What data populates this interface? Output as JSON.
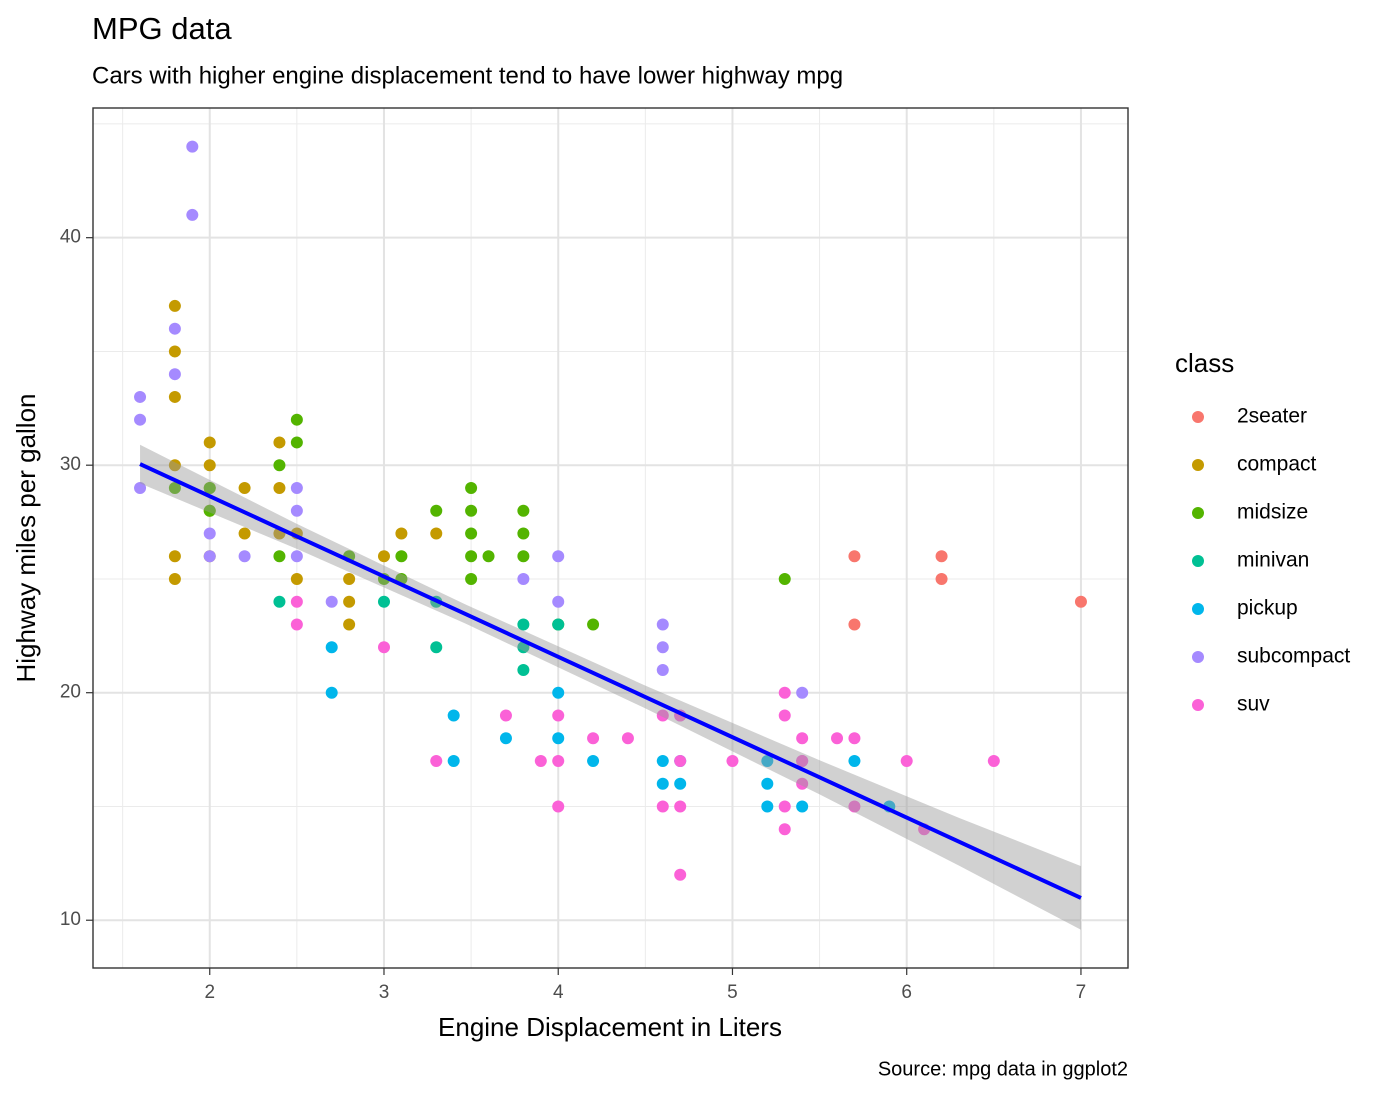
{
  "chart_data": {
    "type": "scatter",
    "title": "MPG data",
    "subtitle": "Cars with higher engine displacement tend to have lower highway mpg",
    "x_label": "Engine Displacement in Liters",
    "y_label": "Highway miles per gallon",
    "caption": "Source: mpg data in ggplot2",
    "legend_title": "class",
    "legend_position": "right",
    "grid": true,
    "xlim": [
      1.33,
      7.27
    ],
    "ylim": [
      7.9,
      45.7
    ],
    "xticks": [
      2,
      3,
      4,
      5,
      6,
      7
    ],
    "yticks": [
      10,
      20,
      30,
      40
    ],
    "minor_xticks": [
      1.5,
      2.5,
      3.5,
      4.5,
      5.5,
      6.5
    ],
    "minor_yticks": [
      15,
      25,
      35,
      45
    ],
    "series": [
      {
        "name": "2seater",
        "color": "#F8766D",
        "x": [
          5.7,
          5.7,
          6.2,
          6.2,
          7
        ],
        "values": [
          26,
          23,
          26,
          25,
          24
        ]
      },
      {
        "name": "compact",
        "color": "#C49A00",
        "x": [
          1.8,
          1.8,
          1.8,
          1.8,
          1.8,
          1.8,
          2,
          2,
          2,
          2,
          2,
          2.2,
          2.2,
          2.4,
          2.4,
          2.4,
          2.5,
          2.5,
          2.8,
          2.8,
          2.8,
          3,
          3.1,
          3.3
        ],
        "values": [
          37,
          35,
          33,
          30,
          26,
          25,
          31,
          30,
          29,
          28,
          26,
          29,
          27,
          31,
          29,
          27,
          27,
          25,
          25,
          24,
          23,
          26,
          27,
          27
        ]
      },
      {
        "name": "midsize",
        "color": "#53B400",
        "x": [
          1.8,
          2,
          2,
          2.4,
          2.4,
          2.5,
          2.5,
          2.8,
          3,
          3.1,
          3.1,
          3.3,
          3.5,
          3.5,
          3.5,
          3.5,
          3.5,
          3.6,
          3.8,
          3.8,
          3.8,
          4,
          4.2,
          5.3
        ],
        "values": [
          29,
          29,
          28,
          30,
          26,
          32,
          31,
          26,
          25,
          26,
          25,
          28,
          29,
          28,
          27,
          26,
          25,
          26,
          28,
          27,
          26,
          23,
          23,
          25
        ]
      },
      {
        "name": "minivan",
        "color": "#00C094",
        "x": [
          2.4,
          3,
          3.3,
          3.3,
          3.8,
          3.8,
          3.8,
          4
        ],
        "values": [
          24,
          24,
          24,
          22,
          23,
          22,
          21,
          23
        ]
      },
      {
        "name": "pickup",
        "color": "#00B6EB",
        "x": [
          2.7,
          2.7,
          3.4,
          3.4,
          3.7,
          4,
          4,
          4.2,
          4.6,
          4.6,
          4.7,
          4.7,
          5.2,
          5.2,
          5.2,
          5.4,
          5.7,
          5.9
        ],
        "values": [
          22,
          20,
          19,
          17,
          18,
          20,
          18,
          17,
          17,
          16,
          17,
          16,
          17,
          16,
          15,
          15,
          17,
          15
        ]
      },
      {
        "name": "subcompact",
        "color": "#A58AFF",
        "x": [
          1.6,
          1.6,
          1.6,
          1.8,
          1.8,
          1.9,
          1.9,
          2,
          2,
          2.2,
          2.5,
          2.5,
          2.5,
          2.7,
          3.8,
          4,
          4,
          4.6,
          4.6,
          4.6,
          4.7,
          5.4,
          5.4
        ],
        "values": [
          33,
          32,
          29,
          36,
          34,
          44,
          41,
          27,
          26,
          26,
          29,
          28,
          26,
          24,
          25,
          26,
          24,
          23,
          22,
          21,
          19,
          20,
          17
        ]
      },
      {
        "name": "suv",
        "color": "#FB61D7",
        "x": [
          2.5,
          2.5,
          3,
          3.3,
          3.7,
          3.9,
          4,
          4,
          4,
          4.2,
          4.4,
          4.6,
          4.6,
          4.7,
          4.7,
          4.7,
          4.7,
          5,
          5.3,
          5.3,
          5.3,
          5.3,
          5.4,
          5.4,
          5.4,
          5.6,
          5.7,
          5.7,
          6,
          6.1,
          6.5
        ],
        "values": [
          24,
          23,
          22,
          17,
          19,
          17,
          19,
          17,
          15,
          18,
          18,
          19,
          15,
          19,
          17,
          15,
          12,
          17,
          20,
          19,
          15,
          14,
          18,
          17,
          16,
          18,
          18,
          15,
          17,
          14,
          17
        ]
      }
    ],
    "fit": {
      "color": "#0000FF",
      "band_color": "#999999",
      "x": [
        1.6,
        2.5,
        3.47,
        4.5,
        5.5,
        6.3,
        7
      ],
      "values": [
        30.05,
        26.87,
        23.45,
        19.81,
        16.28,
        13.45,
        10.98
      ],
      "lower": [
        29.2,
        26.32,
        23.03,
        19.31,
        15.53,
        12.4,
        9.58
      ],
      "upper": [
        30.9,
        27.42,
        23.87,
        20.31,
        17.03,
        14.5,
        12.38
      ]
    }
  }
}
